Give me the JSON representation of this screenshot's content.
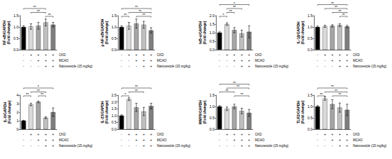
{
  "chart_data": [
    {
      "type": "bar",
      "y_label": "NF-κB/GAPDH\n(Fold change)",
      "categories": [
        null,
        null,
        null,
        null,
        null
      ],
      "values": [
        1.0,
        1.02,
        1.05,
        1.2,
        1.1
      ],
      "errors": [
        0.05,
        0.12,
        0.15,
        0.15,
        0.1
      ],
      "colors": [
        "#000000",
        "#d9d9d9",
        "#a6a6a6",
        "#bfbfbf",
        "#7f7f7f"
      ],
      "ylim": [
        0,
        1.5
      ],
      "yticks": [
        {
          "value": 0,
          "label": "0.0"
        },
        {
          "value": 0.5,
          "label": "0.5"
        },
        {
          "value": 1,
          "label": "1.0"
        },
        {
          "value": 1.5,
          "label": "1.5"
        }
      ],
      "significance": [
        {
          "from": 0,
          "to": 3,
          "label": "**"
        },
        {
          "from": 1,
          "to": 3,
          "label": "**"
        },
        {
          "from": 3,
          "to": 4,
          "label": "**"
        }
      ],
      "conditions": [
        {
          "label": "CKD",
          "values": [
            "-",
            "+",
            "+",
            "+",
            "+"
          ]
        },
        {
          "label": "MCAO",
          "values": [
            "-",
            "-",
            "+",
            "+",
            "+"
          ]
        },
        {
          "label": "Nanovesicle (15 mg/kg)",
          "values": [
            "-",
            "-",
            "-",
            "+",
            "+"
          ]
        }
      ],
      "grid": false,
      "tick_labels": "y"
    },
    {
      "type": "bar",
      "y_label": "p-NF-κB/GAPDH\n(Fold change)",
      "categories": [
        null,
        null,
        null,
        null,
        null
      ],
      "values": [
        1.0,
        1.05,
        1.15,
        1.1,
        0.85
      ],
      "errors": [
        0.05,
        0.15,
        0.2,
        0.15,
        0.12
      ],
      "colors": [
        "#000000",
        "#d9d9d9",
        "#a6a6a6",
        "#bfbfbf",
        "#7f7f7f"
      ],
      "ylim": [
        0,
        1.5
      ],
      "yticks": [
        {
          "value": 0,
          "label": "0.0"
        },
        {
          "value": 0.5,
          "label": "0.5"
        },
        {
          "value": 1,
          "label": "1.0"
        },
        {
          "value": 1.5,
          "label": "1.5"
        }
      ],
      "significance": [
        {
          "from": 0,
          "to": 4,
          "label": "**"
        },
        {
          "from": 1,
          "to": 4,
          "label": "**"
        },
        {
          "from": 0,
          "to": 1,
          "label": "**"
        },
        {
          "from": 2,
          "to": 4,
          "label": "**"
        }
      ],
      "conditions": [
        {
          "label": "CKD",
          "values": [
            "-",
            "+",
            "+",
            "+",
            "+"
          ]
        },
        {
          "label": "MCAO",
          "values": [
            "-",
            "-",
            "+",
            "+",
            "+"
          ]
        },
        {
          "label": "Nanovesicle (15 mg/kg)",
          "values": [
            "-",
            "-",
            "-",
            "+",
            "+"
          ]
        }
      ],
      "grid": false,
      "tick_labels": "y"
    },
    {
      "type": "bar",
      "y_label": "IκB-α/GAPDH\n(Fold change)",
      "categories": [
        null,
        null,
        null,
        null,
        null
      ],
      "values": [
        1.0,
        1.5,
        1.15,
        0.95,
        1.05
      ],
      "errors": [
        0.05,
        0.08,
        0.15,
        0.2,
        0.35
      ],
      "colors": [
        "#000000",
        "#d9d9d9",
        "#a6a6a6",
        "#bfbfbf",
        "#7f7f7f"
      ],
      "ylim": [
        0,
        2
      ],
      "yticks": [
        {
          "value": 0,
          "label": "0.0"
        },
        {
          "value": 0.5,
          "label": "0.5"
        },
        {
          "value": 1,
          "label": "1.0"
        },
        {
          "value": 1.5,
          "label": "1.5"
        },
        {
          "value": 2,
          "label": "2.0"
        }
      ],
      "significance": [
        {
          "from": 0,
          "to": 4,
          "label": "*"
        },
        {
          "from": 1,
          "to": 3,
          "label": "**"
        },
        {
          "from": 0,
          "to": 1,
          "label": "*"
        },
        {
          "from": 1,
          "to": 2,
          "label": "**"
        }
      ],
      "conditions": [
        {
          "label": "CKD",
          "values": [
            "-",
            "+",
            "+",
            "+",
            "+"
          ]
        },
        {
          "label": "MCAO",
          "values": [
            "-",
            "-",
            "+",
            "+",
            "+"
          ]
        },
        {
          "label": "Nanovesicle (15 mg/kg)",
          "values": [
            "-",
            "-",
            "-",
            "+",
            "+"
          ]
        }
      ],
      "grid": false,
      "tick_labels": "y"
    },
    {
      "type": "bar",
      "y_label": "IL-1β/GAPDH\n(Fold change)",
      "categories": [
        null,
        null,
        null,
        null,
        null
      ],
      "values": [
        1.0,
        1.03,
        1.05,
        1.08,
        1.02
      ],
      "errors": [
        0.04,
        0.05,
        0.05,
        0.06,
        0.05
      ],
      "colors": [
        "#000000",
        "#d9d9d9",
        "#a6a6a6",
        "#bfbfbf",
        "#7f7f7f"
      ],
      "ylim": [
        0,
        1.5
      ],
      "yticks": [
        {
          "value": 0,
          "label": "0.0"
        },
        {
          "value": 0.5,
          "label": "0.5"
        },
        {
          "value": 1,
          "label": "1.0"
        },
        {
          "value": 1.5,
          "label": "1.5"
        }
      ],
      "significance": [
        {
          "from": 0,
          "to": 4,
          "label": "**"
        },
        {
          "from": 1,
          "to": 4,
          "label": "**"
        },
        {
          "from": 2,
          "to": 4,
          "label": "**"
        },
        {
          "from": 3,
          "to": 4,
          "label": "**"
        }
      ],
      "conditions": [
        {
          "label": "CKD",
          "values": [
            "-",
            "+",
            "+",
            "+",
            "+"
          ]
        },
        {
          "label": "MCAO",
          "values": [
            "-",
            "-",
            "+",
            "+",
            "+"
          ]
        },
        {
          "label": "Nanovesicle (15 mg/kg)",
          "values": [
            "-",
            "-",
            "-",
            "+",
            "+"
          ]
        }
      ],
      "grid": false,
      "tick_labels": "y"
    },
    {
      "type": "bar",
      "y_label": "IL-6/GAPDH\n(Fold change)",
      "categories": [
        null,
        null,
        null,
        null,
        null
      ],
      "values": [
        1.0,
        2.9,
        3.2,
        1.35,
        2.0
      ],
      "errors": [
        0.05,
        0.15,
        0.1,
        0.1,
        0.5
      ],
      "colors": [
        "#000000",
        "#d9d9d9",
        "#a6a6a6",
        "#bfbfbf",
        "#7f7f7f"
      ],
      "ylim": [
        0,
        4
      ],
      "yticks": [
        0,
        1,
        2,
        3,
        4
      ],
      "significance": [
        {
          "from": 0,
          "to": 4,
          "label": "*"
        },
        {
          "from": 1,
          "to": 3,
          "label": "**"
        },
        {
          "from": 0,
          "to": 1,
          "label": "**"
        },
        {
          "from": 2,
          "to": 3,
          "label": "**"
        }
      ],
      "conditions": [
        {
          "label": "CKD",
          "values": [
            "-",
            "+",
            "+",
            "+",
            "+"
          ]
        },
        {
          "label": "MCAO",
          "values": [
            "-",
            "-",
            "+",
            "+",
            "+"
          ]
        },
        {
          "label": "Nanovesicle (15 mg/kg)",
          "values": [
            "-",
            "-",
            "-",
            "+",
            "+"
          ]
        }
      ],
      "grid": false,
      "tick_labels": "y"
    },
    {
      "type": "bar",
      "y_label": "IL-23/GAPDH\n(Fold change)",
      "categories": [
        null,
        null,
        null,
        null,
        null
      ],
      "values": [
        1.0,
        2.2,
        1.6,
        1.3,
        1.7
      ],
      "errors": [
        0.05,
        0.1,
        0.3,
        0.3,
        0.2
      ],
      "colors": [
        "#000000",
        "#d9d9d9",
        "#a6a6a6",
        "#bfbfbf",
        "#7f7f7f"
      ],
      "ylim": [
        0,
        2.5
      ],
      "yticks": [
        {
          "value": 0,
          "label": "0.0"
        },
        {
          "value": 0.5,
          "label": "0.5"
        },
        {
          "value": 1,
          "label": "1.0"
        },
        {
          "value": 1.5,
          "label": "1.5"
        },
        {
          "value": 2,
          "label": "2.0"
        },
        {
          "value": 2.5,
          "label": "2.5"
        }
      ],
      "significance": [
        {
          "from": 0,
          "to": 4,
          "label": "**"
        },
        {
          "from": 1,
          "to": 3,
          "label": "**"
        },
        {
          "from": 0,
          "to": 1,
          "label": "*"
        }
      ],
      "conditions": [
        {
          "label": "CKD",
          "values": [
            "-",
            "+",
            "+",
            "+",
            "+"
          ]
        },
        {
          "label": "MCAO",
          "values": [
            "-",
            "-",
            "+",
            "+",
            "+"
          ]
        },
        {
          "label": "Nanovesicle (15 mg/kg)",
          "values": [
            "-",
            "-",
            "-",
            "+",
            "+"
          ]
        }
      ],
      "grid": false,
      "tick_labels": "y"
    },
    {
      "type": "bar",
      "y_label": "MMP9/GAPDH\n(Fold change)",
      "categories": [
        null,
        null,
        null,
        null,
        null
      ],
      "values": [
        1.0,
        0.9,
        1.0,
        0.8,
        0.72
      ],
      "errors": [
        0.04,
        0.08,
        0.1,
        0.12,
        0.15
      ],
      "colors": [
        "#000000",
        "#d9d9d9",
        "#a6a6a6",
        "#bfbfbf",
        "#7f7f7f"
      ],
      "ylim": [
        0,
        1.5
      ],
      "yticks": [
        {
          "value": 0,
          "label": "0.0"
        },
        {
          "value": 0.5,
          "label": "0.5"
        },
        {
          "value": 1,
          "label": "1.0"
        },
        {
          "value": 1.5,
          "label": "1.5"
        }
      ],
      "significance": [
        {
          "from": 0,
          "to": 4,
          "label": "**"
        },
        {
          "from": 1,
          "to": 4,
          "label": "**"
        },
        {
          "from": 2,
          "to": 4,
          "label": "**"
        },
        {
          "from": 0,
          "to": 2,
          "label": "**"
        }
      ],
      "conditions": [
        {
          "label": "CKD",
          "values": [
            "-",
            "+",
            "+",
            "+",
            "+"
          ]
        },
        {
          "label": "MCAO",
          "values": [
            "-",
            "-",
            "+",
            "+",
            "+"
          ]
        },
        {
          "label": "Nanovesicle (15 mg/kg)",
          "values": [
            "-",
            "-",
            "-",
            "+",
            "+"
          ]
        }
      ],
      "grid": false,
      "tick_labels": "y"
    },
    {
      "type": "bar",
      "y_label": "TLR2/GAPDH\n(Fold change)",
      "categories": [
        null,
        null,
        null,
        null,
        null
      ],
      "values": [
        1.0,
        1.35,
        1.1,
        0.95,
        0.85
      ],
      "errors": [
        0.04,
        0.08,
        0.2,
        0.2,
        0.25
      ],
      "colors": [
        "#000000",
        "#d9d9d9",
        "#a6a6a6",
        "#bfbfbf",
        "#7f7f7f"
      ],
      "ylim": [
        0,
        1.5
      ],
      "yticks": [
        {
          "value": 0,
          "label": "0.0"
        },
        {
          "value": 0.5,
          "label": "0.5"
        },
        {
          "value": 1,
          "label": "1.0"
        },
        {
          "value": 1.5,
          "label": "1.5"
        }
      ],
      "significance": [
        {
          "from": 0,
          "to": 4,
          "label": "**"
        },
        {
          "from": 1,
          "to": 4,
          "label": "**"
        },
        {
          "from": 2,
          "to": 4,
          "label": "**"
        },
        {
          "from": 0,
          "to": 1,
          "label": "**"
        }
      ],
      "conditions": [
        {
          "label": "CKD",
          "values": [
            "-",
            "+",
            "+",
            "+",
            "+"
          ]
        },
        {
          "label": "MCAO",
          "values": [
            "-",
            "-",
            "+",
            "+",
            "+"
          ]
        },
        {
          "label": "Nanovesicle (15 mg/kg)",
          "values": [
            "-",
            "-",
            "-",
            "+",
            "+"
          ]
        }
      ],
      "grid": false,
      "tick_labels": "y"
    }
  ]
}
